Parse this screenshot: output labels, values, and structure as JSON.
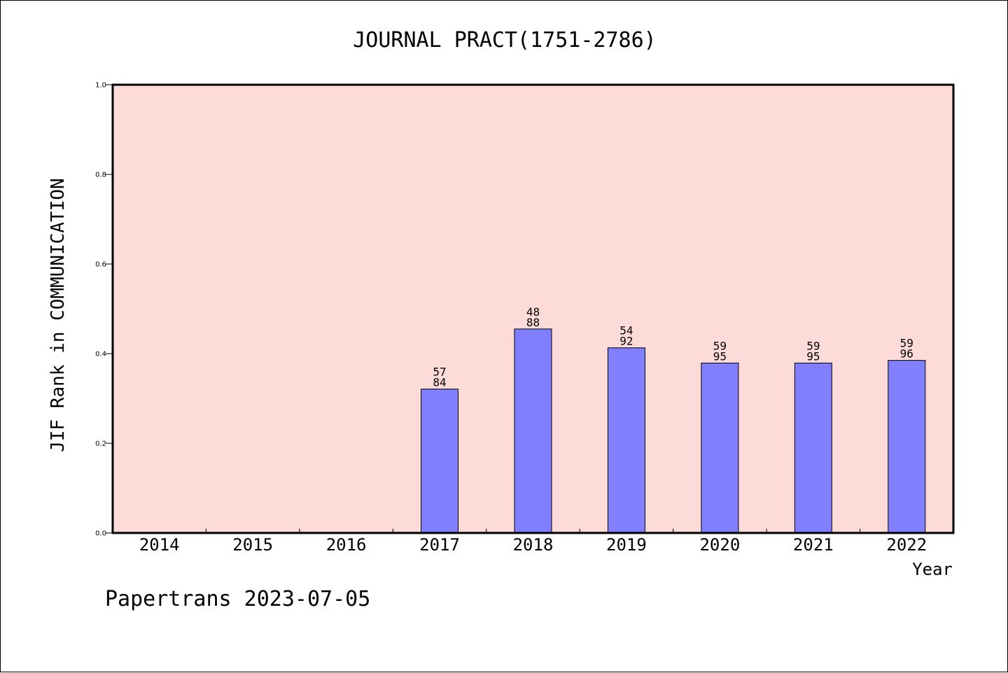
{
  "chart_data": {
    "type": "bar",
    "title": "JOURNAL PRACT(1751-2786)",
    "xlabel": "Year",
    "ylabel": "JIF Rank in COMMUNICATION",
    "ylim": [
      0,
      1
    ],
    "yticks": [
      "0.0",
      "0.2",
      "0.4",
      "0.6",
      "0.8",
      "1.0"
    ],
    "categories": [
      "2014",
      "2015",
      "2016",
      "2017",
      "2018",
      "2019",
      "2020",
      "2021",
      "2022"
    ],
    "values": [
      null,
      null,
      null,
      0.321,
      0.455,
      0.413,
      0.379,
      0.379,
      0.385
    ],
    "rank_labels": [
      null,
      null,
      null,
      {
        "top": "57",
        "bottom": "84"
      },
      {
        "top": "48",
        "bottom": "88"
      },
      {
        "top": "54",
        "bottom": "92"
      },
      {
        "top": "59",
        "bottom": "95"
      },
      {
        "top": "59",
        "bottom": "95"
      },
      {
        "top": "59",
        "bottom": "96"
      }
    ],
    "colors": {
      "plot_background": "#fddbd8",
      "bar_fill": "#8080ff",
      "bar_stroke": "#000000"
    },
    "grid": false,
    "legend": "none"
  },
  "footer": {
    "text": "Papertrans 2023-07-05"
  }
}
